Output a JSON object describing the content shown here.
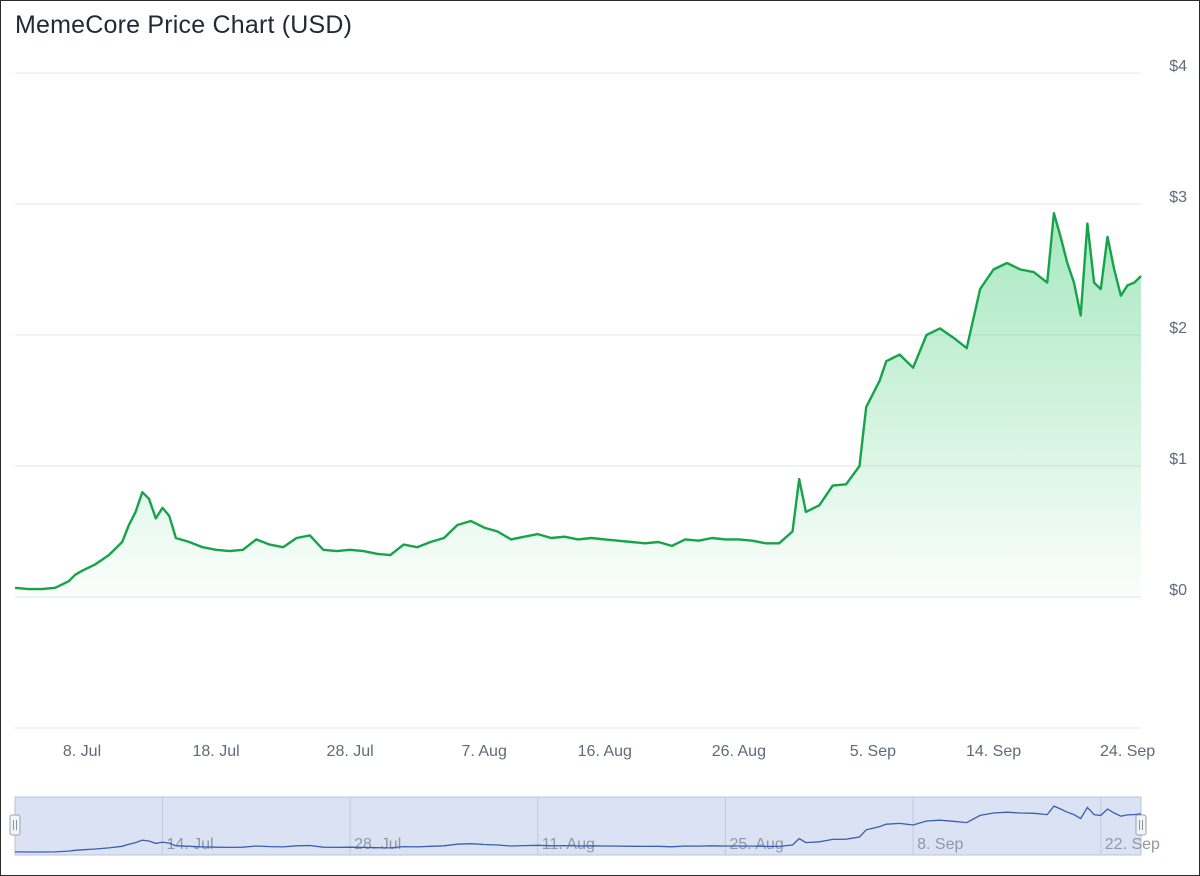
{
  "title": "MemeCore Price Chart (USD)",
  "chart_data": {
    "type": "area",
    "title": "MemeCore Price Chart (USD)",
    "xlabel": "",
    "ylabel": "",
    "ylim": [
      -1,
      4
    ],
    "xlim": [
      "2025-07-03",
      "2025-09-25"
    ],
    "yticks": [
      "$4",
      "$3",
      "$2",
      "$1",
      "$0"
    ],
    "xticks": [
      "8. Jul",
      "18. Jul",
      "28. Jul",
      "7. Aug",
      "16. Aug",
      "26. Aug",
      "5. Sep",
      "14. Sep",
      "24. Sep"
    ],
    "navigator_ticks": [
      "14. Jul",
      "28. Jul",
      "11. Aug",
      "25. Aug",
      "8. Sep",
      "22. Sep"
    ],
    "grid": true,
    "colors": {
      "line": "#16a34a",
      "fill": "#22c55e",
      "navigator_line": "#3b5fb0",
      "navigator_mask": "#dbe2f3"
    },
    "series": [
      {
        "x": [
          "2025-07-03",
          "2025-07-04",
          "2025-07-05",
          "2025-07-06",
          "2025-07-07",
          "2025-07-07T12",
          "2025-07-08",
          "2025-07-09",
          "2025-07-10",
          "2025-07-11",
          "2025-07-11T12",
          "2025-07-12",
          "2025-07-12T12",
          "2025-07-13",
          "2025-07-13T12",
          "2025-07-14",
          "2025-07-14T12",
          "2025-07-15",
          "2025-07-16",
          "2025-07-17",
          "2025-07-18",
          "2025-07-19",
          "2025-07-20",
          "2025-07-21",
          "2025-07-22",
          "2025-07-23",
          "2025-07-24",
          "2025-07-25",
          "2025-07-26",
          "2025-07-27",
          "2025-07-28",
          "2025-07-29",
          "2025-07-30",
          "2025-07-31",
          "2025-08-01",
          "2025-08-02",
          "2025-08-03",
          "2025-08-04",
          "2025-08-05",
          "2025-08-06",
          "2025-08-07",
          "2025-08-08",
          "2025-08-09",
          "2025-08-10",
          "2025-08-11",
          "2025-08-12",
          "2025-08-13",
          "2025-08-14",
          "2025-08-15",
          "2025-08-16",
          "2025-08-17",
          "2025-08-18",
          "2025-08-19",
          "2025-08-20",
          "2025-08-21",
          "2025-08-22",
          "2025-08-23",
          "2025-08-24",
          "2025-08-25",
          "2025-08-26",
          "2025-08-27",
          "2025-08-28",
          "2025-08-29",
          "2025-08-30",
          "2025-08-30T12",
          "2025-08-31",
          "2025-09-01",
          "2025-09-02",
          "2025-09-03",
          "2025-09-04",
          "2025-09-04T12",
          "2025-09-05",
          "2025-09-05T12",
          "2025-09-06",
          "2025-09-07",
          "2025-09-08",
          "2025-09-09",
          "2025-09-10",
          "2025-09-11",
          "2025-09-12",
          "2025-09-13",
          "2025-09-14",
          "2025-09-15",
          "2025-09-16",
          "2025-09-17",
          "2025-09-18",
          "2025-09-18T12",
          "2025-09-19",
          "2025-09-19T12",
          "2025-09-20",
          "2025-09-20T12",
          "2025-09-21",
          "2025-09-21T12",
          "2025-09-22",
          "2025-09-22T12",
          "2025-09-23",
          "2025-09-23T12",
          "2025-09-24",
          "2025-09-24T12",
          "2025-09-25"
        ],
        "values": [
          0.07,
          0.06,
          0.06,
          0.07,
          0.12,
          0.17,
          0.2,
          0.25,
          0.32,
          0.42,
          0.55,
          0.65,
          0.8,
          0.75,
          0.6,
          0.68,
          0.62,
          0.45,
          0.42,
          0.38,
          0.36,
          0.35,
          0.36,
          0.44,
          0.4,
          0.38,
          0.45,
          0.47,
          0.36,
          0.35,
          0.36,
          0.35,
          0.33,
          0.32,
          0.4,
          0.38,
          0.42,
          0.45,
          0.55,
          0.58,
          0.53,
          0.5,
          0.44,
          0.46,
          0.48,
          0.45,
          0.46,
          0.44,
          0.45,
          0.44,
          0.43,
          0.42,
          0.41,
          0.42,
          0.39,
          0.44,
          0.43,
          0.45,
          0.44,
          0.44,
          0.43,
          0.41,
          0.41,
          0.5,
          0.9,
          0.65,
          0.7,
          0.85,
          0.86,
          1.0,
          1.45,
          1.55,
          1.65,
          1.8,
          1.85,
          1.75,
          2.0,
          2.05,
          1.98,
          1.9,
          2.35,
          2.5,
          2.55,
          2.5,
          2.48,
          2.4,
          2.93,
          2.75,
          2.55,
          2.4,
          2.15,
          2.85,
          2.4,
          2.35,
          2.75,
          2.5,
          2.3,
          2.38,
          2.4,
          2.45
        ]
      }
    ]
  }
}
